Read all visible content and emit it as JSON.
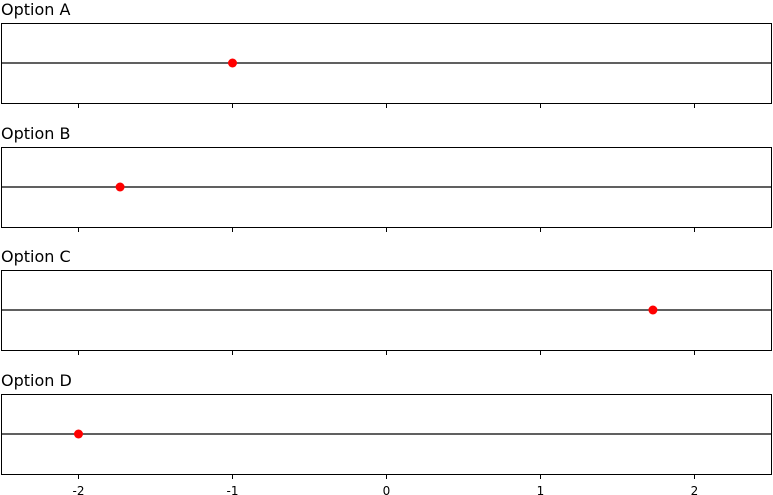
{
  "chart_data": {
    "type": "scatter",
    "xlim": [
      -2.5,
      2.5
    ],
    "xticks": [
      -2,
      -1,
      0,
      1,
      2
    ],
    "xtick_labels": [
      "-2",
      "-1",
      "0",
      "1",
      "2"
    ],
    "grid": false,
    "panels": [
      {
        "title": "Option A",
        "points": [
          {
            "x": -1,
            "y": 0
          }
        ]
      },
      {
        "title": "Option B",
        "points": [
          {
            "x": -1.73,
            "y": 0
          }
        ]
      },
      {
        "title": "Option C",
        "points": [
          {
            "x": 1.73,
            "y": 0
          }
        ]
      },
      {
        "title": "Option D",
        "points": [
          {
            "x": -2,
            "y": 0
          }
        ]
      }
    ],
    "point_color": "#ff0000",
    "line_color": "#000000"
  }
}
